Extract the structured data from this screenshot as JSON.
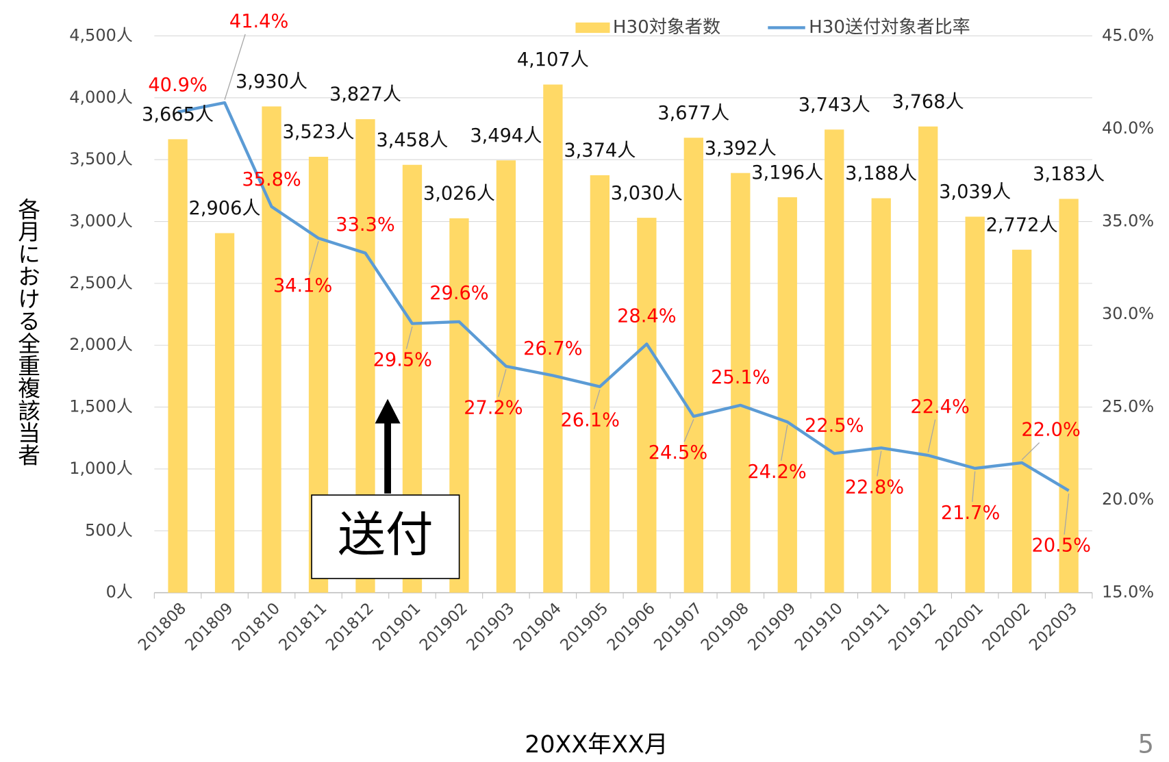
{
  "chart_data": {
    "type": "bar_line",
    "categories": [
      "201808",
      "201809",
      "201810",
      "201811",
      "201812",
      "201901",
      "201902",
      "201903",
      "201904",
      "201905",
      "201906",
      "201907",
      "201908",
      "201909",
      "201910",
      "201911",
      "201912",
      "202001",
      "202002",
      "202003"
    ],
    "series": [
      {
        "name": "H30対象者数",
        "type": "bar",
        "color": "#ffd966",
        "values": [
          3665,
          2906,
          3930,
          3523,
          3827,
          3458,
          3026,
          3494,
          4107,
          3374,
          3030,
          3677,
          3392,
          3196,
          3743,
          3188,
          3768,
          3039,
          2772,
          3183
        ],
        "value_labels": [
          "3,665人",
          "2,906人",
          "3,930人",
          "3,523人",
          "3,827人",
          "3,458人",
          "3,026人",
          "3,494人",
          "4,107人",
          "3,374人",
          "3,030人",
          "3,677人",
          "3,392人",
          "3,196人",
          "3,743人",
          "3,188人",
          "3,768人",
          "3,039人",
          "2,772人",
          "3,183人"
        ]
      },
      {
        "name": "H30送付対象者比率",
        "type": "line",
        "axis": "y2",
        "color": "#5b9bd5",
        "values": [
          40.9,
          41.4,
          35.8,
          34.1,
          33.3,
          29.5,
          29.6,
          27.2,
          26.7,
          26.1,
          28.4,
          24.5,
          25.1,
          24.2,
          22.5,
          22.8,
          22.4,
          21.7,
          22.0,
          20.5
        ],
        "value_labels": [
          "40.9%",
          "41.4%",
          "35.8%",
          "34.1%",
          "33.3%",
          "29.5%",
          "29.6%",
          "27.2%",
          "26.7%",
          "26.1%",
          "28.4%",
          "24.5%",
          "25.1%",
          "24.2%",
          "22.5%",
          "22.8%",
          "22.4%",
          "21.7%",
          "22.0%",
          "20.5%"
        ]
      }
    ],
    "ylim": [
      0,
      4500
    ],
    "yticks": [
      {
        "value": 0,
        "label": "0人"
      },
      {
        "value": 500,
        "label": "500人"
      },
      {
        "value": 1000,
        "label": "1,000人"
      },
      {
        "value": 1500,
        "label": "1,500人"
      },
      {
        "value": 2000,
        "label": "2,000人"
      },
      {
        "value": 2500,
        "label": "2,500人"
      },
      {
        "value": 3000,
        "label": "3,000人"
      },
      {
        "value": 3500,
        "label": "3,500人"
      },
      {
        "value": 4000,
        "label": "4,000人"
      },
      {
        "value": 4500,
        "label": "4,500人"
      }
    ],
    "y2lim": [
      15,
      45
    ],
    "y2ticks": [
      {
        "value": 15,
        "label": "15.0%"
      },
      {
        "value": 20,
        "label": "20.0%"
      },
      {
        "value": 25,
        "label": "25.0%"
      },
      {
        "value": 30,
        "label": "30.0%"
      },
      {
        "value": 35,
        "label": "35.0%"
      },
      {
        "value": 40,
        "label": "40.0%"
      },
      {
        "value": 45,
        "label": "45.0%"
      }
    ],
    "ylabel": "各月における全重複該当者",
    "xlabel": "20XX年XX月",
    "annotation": "送付",
    "page_number": "5",
    "grid": true,
    "legend": "top"
  }
}
